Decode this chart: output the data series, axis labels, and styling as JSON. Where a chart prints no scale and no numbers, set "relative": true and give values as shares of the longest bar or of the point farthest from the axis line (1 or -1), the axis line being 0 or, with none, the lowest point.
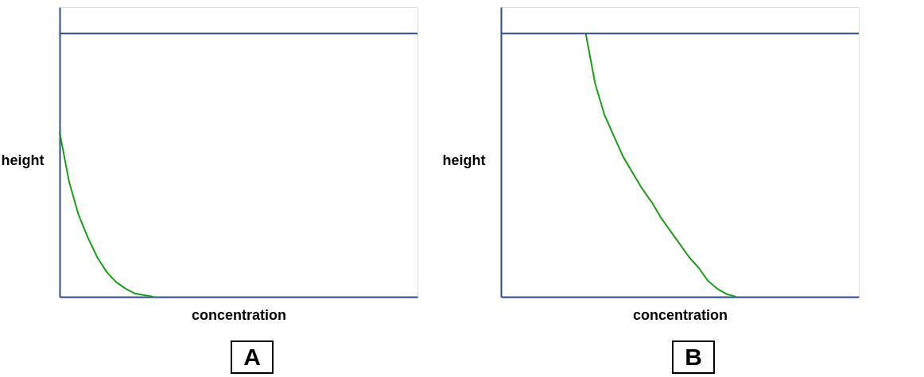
{
  "chart_data": [
    {
      "type": "line",
      "title": "A",
      "xlabel": "concentration",
      "ylabel": "height",
      "relative": true,
      "line_style": "solid",
      "categories": [
        null,
        null,
        null,
        null,
        null,
        null,
        null,
        null,
        null,
        null,
        null,
        null,
        null,
        null,
        null,
        null,
        null,
        null,
        null,
        null,
        null,
        null,
        null,
        null,
        null,
        null,
        null,
        null,
        null,
        null,
        null,
        null,
        null,
        null,
        null,
        null,
        null,
        null,
        null
      ],
      "ref_lines": [
        {
          "axis": "y",
          "value": 1.6,
          "label": null,
          "color": "#2e4a8f"
        }
      ],
      "series": [
        {
          "color": "#1a9e1a",
          "values": [
            1,
            0.7,
            0.5,
            0.36,
            0.24,
            0.15,
            0.09,
            0.05,
            0.02,
            0.01,
            0,
            null,
            null,
            null,
            null,
            null,
            null,
            null,
            null,
            null,
            null,
            null,
            null,
            null,
            null,
            null,
            null,
            null,
            null,
            null,
            null,
            null,
            null,
            null,
            null,
            null,
            null,
            null,
            null
          ]
        }
      ]
    },
    {
      "type": "line",
      "title": "B",
      "xlabel": "concentration",
      "ylabel": "height",
      "relative": true,
      "line_style": "solid",
      "categories": [
        null,
        null,
        null,
        null,
        null,
        null,
        null,
        null,
        null,
        null,
        null,
        null,
        null,
        null,
        null,
        null,
        null,
        null,
        null,
        null,
        null,
        null,
        null,
        null,
        null,
        null,
        null,
        null,
        null,
        null,
        null,
        null,
        null,
        null,
        null,
        null,
        null,
        null,
        null
      ],
      "ref_lines": [
        {
          "axis": "y",
          "value": 1.0,
          "label": null,
          "color": "#2e4a8f"
        }
      ],
      "series": [
        {
          "color": "#1a9e1a",
          "values": [
            null,
            null,
            null,
            null,
            null,
            null,
            null,
            null,
            null,
            1,
            0.81,
            0.69,
            0.61,
            0.53,
            0.47,
            0.41,
            0.36,
            0.3,
            0.25,
            0.2,
            0.15,
            0.11,
            0.06,
            0.03,
            0.01,
            0,
            null,
            null,
            null,
            null,
            null,
            null,
            null,
            null,
            null,
            null,
            null,
            null,
            null
          ]
        }
      ]
    }
  ]
}
